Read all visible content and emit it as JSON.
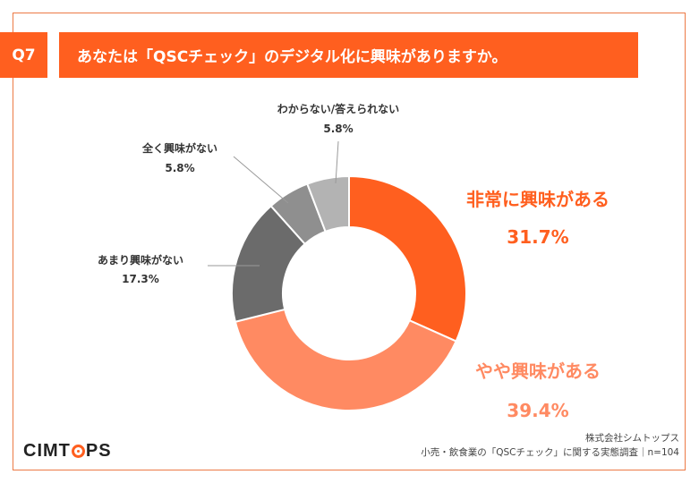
{
  "header": {
    "question_id": "Q7",
    "question_text": "あなたは「QSCチェック」のデジタル化に興味がありますか。"
  },
  "chart_data": {
    "type": "pie",
    "style": "donut",
    "slices": [
      {
        "label": "非常に興味がある",
        "value": 31.7,
        "value_text": "31.7%",
        "color": "#ff5f1f",
        "label_color": "#ff5f1f"
      },
      {
        "label": "やや興味がある",
        "value": 39.4,
        "value_text": "39.4%",
        "color": "#ff8a62",
        "label_color": "#ff8a62"
      },
      {
        "label": "あまり興味がない",
        "value": 17.3,
        "value_text": "17.3%",
        "color": "#6b6b6b",
        "label_color": "#333333"
      },
      {
        "label": "全く興味がない",
        "value": 5.8,
        "value_text": "5.8%",
        "color": "#8f8f8f",
        "label_color": "#333333"
      },
      {
        "label": "わからない/答えられない",
        "value": 5.8,
        "value_text": "5.8%",
        "color": "#b3b3b3",
        "label_color": "#333333"
      }
    ]
  },
  "footer": {
    "logo_text": "CIMTOPS",
    "logo_left": "CIMT",
    "logo_right": "PS",
    "company": "株式会社シムトップス",
    "survey": "小売・飲食業の「QSCチェック」に関する実態調査｜n=104"
  }
}
